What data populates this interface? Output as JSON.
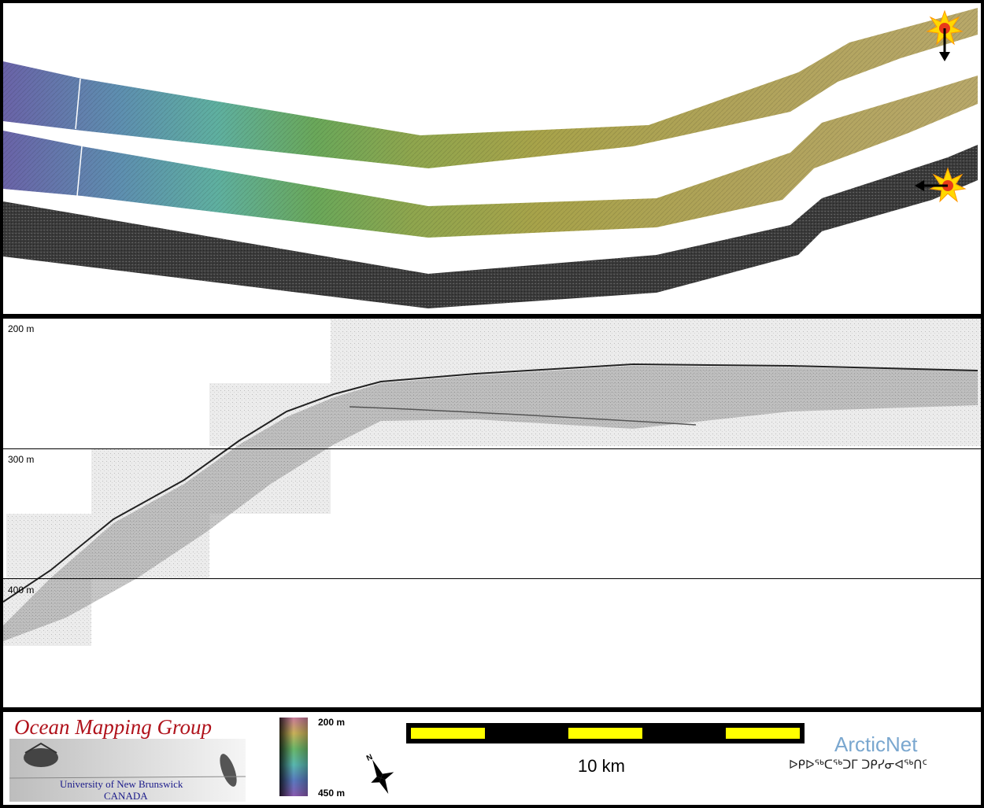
{
  "depth_labels": [
    "200 m",
    "300 m",
    "400 m"
  ],
  "logo": {
    "title": "Ocean Mapping Group",
    "institution": "University of New Brunswick",
    "country": "CANADA"
  },
  "legend": {
    "colormap_top": "200 m",
    "colormap_bottom": "450 m"
  },
  "north_arrow": {
    "label": "N"
  },
  "scale_bar": {
    "label": "10 km"
  },
  "partner": {
    "name": "ArcticNet",
    "syllabics": "ᐅᑭᐅᖅᑕᖅᑐᒥ ᑐᑭᓯᓂᐊᖅᑎᑦ"
  },
  "markers": [
    {
      "name": "event-start-top",
      "icon": "starburst-icon",
      "arrow": "down"
    },
    {
      "name": "event-start-bottom",
      "icon": "starburst-icon",
      "arrow": "left"
    }
  ],
  "colors": {
    "frame": "#000000",
    "logo_red": "#b0121b",
    "logo_blue": "#1a1a8a",
    "arcticnet_blue": "#7aa7cf",
    "scale_yellow": "#ffff00"
  }
}
